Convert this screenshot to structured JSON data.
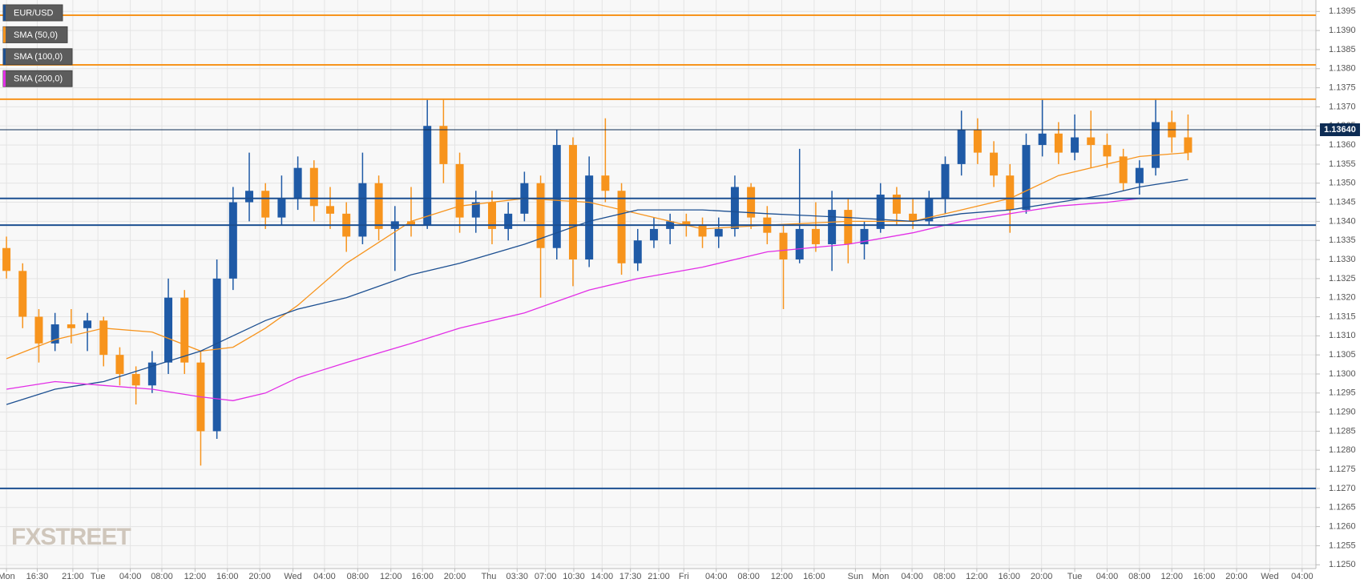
{
  "chart_data": {
    "type": "candlestick",
    "instrument": {
      "name": "EUR/USD",
      "color": "#1c4f91"
    },
    "brand": "FXSTREET",
    "up_color": "#1f5aa6",
    "down_color": "#f7941d",
    "grid": true,
    "xlim": [
      -0.8,
      161.8
    ],
    "ylim": [
      1.1249,
      1.1398
    ],
    "xticks": [
      {
        "value": 0,
        "label": "Mon"
      },
      {
        "value": 3.8,
        "label": "16:30"
      },
      {
        "value": 8.2,
        "label": "21:00"
      },
      {
        "value": 11.3,
        "label": "Tue"
      },
      {
        "value": 15.3,
        "label": "04:00"
      },
      {
        "value": 19.2,
        "label": "08:00"
      },
      {
        "value": 23.3,
        "label": "12:00"
      },
      {
        "value": 27.3,
        "label": "16:00"
      },
      {
        "value": 31.3,
        "label": "20:00"
      },
      {
        "value": 35.4,
        "label": "Wed"
      },
      {
        "value": 39.3,
        "label": "04:00"
      },
      {
        "value": 43.4,
        "label": "08:00"
      },
      {
        "value": 47.5,
        "label": "12:00"
      },
      {
        "value": 51.4,
        "label": "16:00"
      },
      {
        "value": 55.4,
        "label": "20:00"
      },
      {
        "value": 59.6,
        "label": "Thu"
      },
      {
        "value": 63.1,
        "label": "03:30"
      },
      {
        "value": 66.6,
        "label": "07:00"
      },
      {
        "value": 70.1,
        "label": "10:30"
      },
      {
        "value": 73.6,
        "label": "14:00"
      },
      {
        "value": 77.1,
        "label": "17:30"
      },
      {
        "value": 80.6,
        "label": "21:00"
      },
      {
        "value": 83.7,
        "label": "Fri"
      },
      {
        "value": 87.7,
        "label": "04:00"
      },
      {
        "value": 91.7,
        "label": "08:00"
      },
      {
        "value": 95.8,
        "label": "12:00"
      },
      {
        "value": 99.8,
        "label": "16:00"
      },
      {
        "value": 104.9,
        "label": "Sun"
      },
      {
        "value": 108,
        "label": "Mon"
      },
      {
        "value": 111.9,
        "label": "04:00"
      },
      {
        "value": 115.9,
        "label": "08:00"
      },
      {
        "value": 119.9,
        "label": "12:00"
      },
      {
        "value": 123.9,
        "label": "16:00"
      },
      {
        "value": 127.9,
        "label": "20:00"
      },
      {
        "value": 132,
        "label": "Tue"
      },
      {
        "value": 136,
        "label": "04:00"
      },
      {
        "value": 140,
        "label": "08:00"
      },
      {
        "value": 144,
        "label": "12:00"
      },
      {
        "value": 148,
        "label": "16:00"
      },
      {
        "value": 152,
        "label": "20:00"
      },
      {
        "value": 156.1,
        "label": "Wed"
      },
      {
        "value": 160.1,
        "label": "04:00"
      }
    ],
    "yticks": [
      {
        "value": 1.125,
        "label": "1.1250"
      },
      1.1255,
      {
        "value": 1.126,
        "label": "1.1260"
      },
      1.1265,
      {
        "value": 1.127,
        "label": "1.1270"
      },
      1.1275,
      {
        "value": 1.128,
        "label": "1.1280"
      },
      1.1285,
      {
        "value": 1.129,
        "label": "1.1290"
      },
      1.1295,
      {
        "value": 1.13,
        "label": "1.1300"
      },
      1.1305,
      {
        "value": 1.131,
        "label": "1.1310"
      },
      1.1315,
      {
        "value": 1.132,
        "label": "1.1320"
      },
      1.1325,
      {
        "value": 1.133,
        "label": "1.1330"
      },
      1.1335,
      {
        "value": 1.134,
        "label": "1.1340"
      },
      1.1345,
      {
        "value": 1.135,
        "label": "1.1350"
      },
      1.1355,
      {
        "value": 1.136,
        "label": "1.1360"
      },
      1.1365,
      {
        "value": 1.137,
        "label": "1.1370"
      },
      1.1375,
      {
        "value": 1.138,
        "label": "1.1380"
      },
      1.1385,
      {
        "value": 1.139,
        "label": "1.1390"
      },
      1.1395
    ],
    "x": [
      0,
      2,
      4,
      6,
      8,
      10,
      12,
      14,
      16,
      18,
      20,
      22,
      24,
      26,
      28,
      30,
      32,
      34,
      36,
      38,
      40,
      42,
      44,
      46,
      48,
      50,
      52,
      54,
      56,
      58,
      60,
      62,
      64,
      66,
      68,
      70,
      72,
      74,
      76,
      78,
      80,
      82,
      84,
      86,
      88,
      90,
      92,
      94,
      96,
      98,
      100,
      102,
      104,
      106,
      108,
      110,
      112,
      114,
      116,
      118,
      120,
      122,
      124,
      126,
      128,
      130,
      132,
      134,
      136,
      138,
      140,
      142,
      144,
      146
    ],
    "open": [
      1.1333,
      1.1327,
      1.1315,
      1.1308,
      1.1313,
      1.1312,
      1.1314,
      1.1305,
      1.13,
      1.1297,
      1.1303,
      1.132,
      1.1303,
      1.1285,
      1.1325,
      1.1345,
      1.1348,
      1.1341,
      1.1346,
      1.1354,
      1.1344,
      1.1342,
      1.1336,
      1.135,
      1.1338,
      1.134,
      1.1339,
      1.1365,
      1.1355,
      1.1341,
      1.1345,
      1.1338,
      1.1342,
      1.135,
      1.1333,
      1.136,
      1.133,
      1.1352,
      1.1348,
      1.1329,
      1.1335,
      1.1338,
      1.134,
      1.1339,
      1.1336,
      1.1338,
      1.1349,
      1.1341,
      1.1337,
      1.133,
      1.1338,
      1.1334,
      1.1343,
      1.1334,
      1.1338,
      1.1347,
      1.1342,
      1.134,
      1.1346,
      1.1355,
      1.1364,
      1.1358,
      1.1352,
      1.1343,
      1.136,
      1.1363,
      1.1358,
      1.1362,
      1.136,
      1.1357,
      1.135,
      1.1354,
      1.1366,
      1.1362
    ],
    "high": [
      1.1336,
      1.1329,
      1.1317,
      1.1316,
      1.1317,
      1.1316,
      1.1315,
      1.1307,
      1.1302,
      1.1306,
      1.1325,
      1.1322,
      1.1306,
      1.133,
      1.1349,
      1.1358,
      1.135,
      1.1352,
      1.1357,
      1.1356,
      1.1349,
      1.1345,
      1.1358,
      1.1352,
      1.1344,
      1.1349,
      1.1372,
      1.1372,
      1.1358,
      1.1348,
      1.1348,
      1.1345,
      1.1353,
      1.1352,
      1.1364,
      1.1362,
      1.1357,
      1.1367,
      1.135,
      1.1338,
      1.1341,
      1.1342,
      1.1342,
      1.1341,
      1.1341,
      1.1352,
      1.135,
      1.1344,
      1.1339,
      1.1359,
      1.1345,
      1.1348,
      1.1346,
      1.134,
      1.135,
      1.1349,
      1.1346,
      1.1348,
      1.1357,
      1.1369,
      1.1367,
      1.1361,
      1.1355,
      1.1363,
      1.1372,
      1.1366,
      1.1368,
      1.1369,
      1.1363,
      1.1359,
      1.1356,
      1.1372,
      1.1369,
      1.1368
    ],
    "low": [
      1.1325,
      1.1312,
      1.1303,
      1.1306,
      1.1308,
      1.1306,
      1.1302,
      1.1297,
      1.1292,
      1.1295,
      1.13,
      1.13,
      1.1276,
      1.1283,
      1.1322,
      1.134,
      1.1338,
      1.1339,
      1.1343,
      1.134,
      1.1338,
      1.1332,
      1.1334,
      1.1335,
      1.1327,
      1.1336,
      1.1338,
      1.135,
      1.1337,
      1.1337,
      1.1334,
      1.1335,
      1.134,
      1.132,
      1.133,
      1.1323,
      1.1328,
      1.1345,
      1.1326,
      1.1327,
      1.1333,
      1.1334,
      1.1336,
      1.1333,
      1.1333,
      1.1336,
      1.1338,
      1.1334,
      1.1317,
      1.1329,
      1.1332,
      1.1327,
      1.1329,
      1.133,
      1.1337,
      1.1339,
      1.1338,
      1.1339,
      1.1342,
      1.1352,
      1.1355,
      1.1349,
      1.1337,
      1.1342,
      1.1357,
      1.1355,
      1.1356,
      1.1354,
      1.1354,
      1.1348,
      1.1347,
      1.1352,
      1.1358,
      1.1356
    ],
    "close": [
      1.1327,
      1.1315,
      1.1308,
      1.1313,
      1.1312,
      1.1314,
      1.1305,
      1.13,
      1.1297,
      1.1303,
      1.132,
      1.1303,
      1.1285,
      1.1325,
      1.1345,
      1.1348,
      1.1341,
      1.1346,
      1.1354,
      1.1344,
      1.1342,
      1.1336,
      1.135,
      1.1338,
      1.134,
      1.1339,
      1.1365,
      1.1355,
      1.1341,
      1.1345,
      1.1338,
      1.1342,
      1.135,
      1.1333,
      1.136,
      1.133,
      1.1352,
      1.1348,
      1.1329,
      1.1335,
      1.1338,
      1.134,
      1.1339,
      1.1336,
      1.1338,
      1.1349,
      1.1341,
      1.1337,
      1.133,
      1.1338,
      1.1334,
      1.1343,
      1.1334,
      1.1338,
      1.1347,
      1.1342,
      1.134,
      1.1346,
      1.1355,
      1.1364,
      1.1358,
      1.1352,
      1.1343,
      1.136,
      1.1363,
      1.1358,
      1.1362,
      1.136,
      1.1357,
      1.135,
      1.1354,
      1.1366,
      1.1362,
      1.1358
    ],
    "overlays": [
      {
        "name": "SMA (50,0)",
        "color": "#f7941d",
        "x": [
          0,
          6,
          12,
          18,
          24,
          28,
          32,
          36,
          42,
          50,
          56,
          64,
          72,
          78,
          86,
          94,
          104,
          112,
          118,
          124,
          130,
          136,
          140,
          146
        ],
        "values": [
          1.1304,
          1.1309,
          1.1312,
          1.1311,
          1.1306,
          1.1307,
          1.1312,
          1.1318,
          1.1329,
          1.134,
          1.1344,
          1.1346,
          1.1345,
          1.1342,
          1.1338,
          1.1339,
          1.134,
          1.134,
          1.1343,
          1.1346,
          1.1352,
          1.1355,
          1.1357,
          1.1358
        ]
      },
      {
        "name": "SMA (100,0)",
        "color": "#1c4f91",
        "x": [
          0,
          6,
          12,
          18,
          24,
          28,
          32,
          36,
          42,
          50,
          56,
          64,
          72,
          78,
          86,
          94,
          104,
          112,
          118,
          124,
          130,
          136,
          140,
          146
        ],
        "values": [
          1.1292,
          1.1296,
          1.1298,
          1.1302,
          1.1306,
          1.131,
          1.1314,
          1.1317,
          1.132,
          1.1326,
          1.1329,
          1.1334,
          1.134,
          1.1343,
          1.1343,
          1.1342,
          1.1341,
          1.134,
          1.1342,
          1.1343,
          1.1345,
          1.1347,
          1.1349,
          1.1351
        ]
      },
      {
        "name": "SMA (200,0)",
        "color": "#e22ee6",
        "x": [
          0,
          6,
          12,
          18,
          24,
          28,
          32,
          36,
          42,
          50,
          56,
          64,
          72,
          78,
          86,
          94,
          104,
          112,
          118,
          124,
          130,
          136,
          140,
          146
        ],
        "values": [
          1.1296,
          1.1298,
          1.1297,
          1.1296,
          1.1294,
          1.1293,
          1.1295,
          1.1299,
          1.1303,
          1.1308,
          1.1312,
          1.1316,
          1.1322,
          1.1325,
          1.1328,
          1.1332,
          1.1334,
          1.1337,
          1.134,
          1.1342,
          1.1344,
          1.1345,
          1.1346,
          1.1346
        ]
      }
    ],
    "levels": [
      {
        "value": 1.1394,
        "color": "#f7941d"
      },
      {
        "value": 1.1381,
        "color": "#f7941d"
      },
      {
        "value": 1.1372,
        "color": "#f7941d"
      },
      {
        "value": 1.1346,
        "color": "#1c4f91"
      },
      {
        "value": 1.1339,
        "color": "#1c4f91"
      },
      {
        "value": 1.127,
        "color": "#1c4f91"
      }
    ],
    "last_price": {
      "value": 1.1364,
      "label": "1.13640",
      "color": "#0d2c54"
    }
  }
}
